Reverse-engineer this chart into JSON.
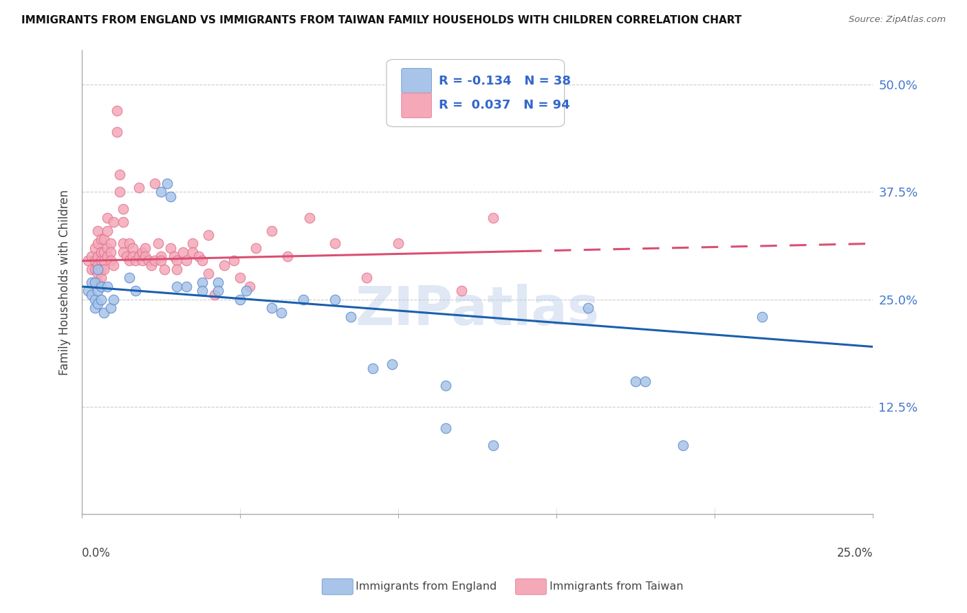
{
  "title": "IMMIGRANTS FROM ENGLAND VS IMMIGRANTS FROM TAIWAN FAMILY HOUSEHOLDS WITH CHILDREN CORRELATION CHART",
  "source": "Source: ZipAtlas.com",
  "ylabel": "Family Households with Children",
  "xlim": [
    0.0,
    0.25
  ],
  "ylim": [
    0.0,
    0.54
  ],
  "yticks": [
    0.0,
    0.125,
    0.25,
    0.375,
    0.5
  ],
  "ytick_labels": [
    "",
    "12.5%",
    "25.0%",
    "37.5%",
    "50.0%"
  ],
  "watermark": "ZIPatlas",
  "england_color": "#a8c4e8",
  "taiwan_color": "#f4a8b8",
  "england_edge_color": "#5588cc",
  "taiwan_edge_color": "#e07090",
  "england_line_color": "#1a5fad",
  "taiwan_line_color": "#d94f72",
  "england_trend_x": [
    0.0,
    0.25
  ],
  "england_trend_y": [
    0.265,
    0.195
  ],
  "taiwan_trend_x": [
    0.0,
    0.25
  ],
  "taiwan_trend_y": [
    0.295,
    0.315
  ],
  "england_scatter": [
    [
      0.002,
      0.26
    ],
    [
      0.003,
      0.27
    ],
    [
      0.003,
      0.255
    ],
    [
      0.004,
      0.27
    ],
    [
      0.004,
      0.25
    ],
    [
      0.004,
      0.24
    ],
    [
      0.005,
      0.285
    ],
    [
      0.005,
      0.26
    ],
    [
      0.005,
      0.245
    ],
    [
      0.006,
      0.265
    ],
    [
      0.006,
      0.25
    ],
    [
      0.007,
      0.235
    ],
    [
      0.008,
      0.265
    ],
    [
      0.009,
      0.24
    ],
    [
      0.01,
      0.25
    ],
    [
      0.015,
      0.275
    ],
    [
      0.017,
      0.26
    ],
    [
      0.025,
      0.375
    ],
    [
      0.027,
      0.385
    ],
    [
      0.028,
      0.37
    ],
    [
      0.03,
      0.265
    ],
    [
      0.033,
      0.265
    ],
    [
      0.038,
      0.27
    ],
    [
      0.038,
      0.26
    ],
    [
      0.043,
      0.27
    ],
    [
      0.043,
      0.26
    ],
    [
      0.05,
      0.25
    ],
    [
      0.052,
      0.26
    ],
    [
      0.06,
      0.24
    ],
    [
      0.063,
      0.235
    ],
    [
      0.07,
      0.25
    ],
    [
      0.08,
      0.25
    ],
    [
      0.085,
      0.23
    ],
    [
      0.092,
      0.17
    ],
    [
      0.098,
      0.175
    ],
    [
      0.115,
      0.15
    ],
    [
      0.115,
      0.1
    ],
    [
      0.13,
      0.08
    ],
    [
      0.16,
      0.24
    ],
    [
      0.175,
      0.155
    ],
    [
      0.178,
      0.155
    ],
    [
      0.19,
      0.08
    ],
    [
      0.215,
      0.23
    ]
  ],
  "taiwan_scatter": [
    [
      0.002,
      0.295
    ],
    [
      0.003,
      0.3
    ],
    [
      0.003,
      0.285
    ],
    [
      0.004,
      0.31
    ],
    [
      0.004,
      0.295
    ],
    [
      0.004,
      0.285
    ],
    [
      0.005,
      0.33
    ],
    [
      0.005,
      0.315
    ],
    [
      0.005,
      0.3
    ],
    [
      0.005,
      0.29
    ],
    [
      0.005,
      0.28
    ],
    [
      0.005,
      0.27
    ],
    [
      0.006,
      0.32
    ],
    [
      0.006,
      0.305
    ],
    [
      0.006,
      0.295
    ],
    [
      0.006,
      0.285
    ],
    [
      0.006,
      0.275
    ],
    [
      0.007,
      0.32
    ],
    [
      0.007,
      0.305
    ],
    [
      0.007,
      0.295
    ],
    [
      0.007,
      0.285
    ],
    [
      0.008,
      0.345
    ],
    [
      0.008,
      0.33
    ],
    [
      0.008,
      0.31
    ],
    [
      0.008,
      0.3
    ],
    [
      0.009,
      0.315
    ],
    [
      0.009,
      0.305
    ],
    [
      0.009,
      0.295
    ],
    [
      0.01,
      0.34
    ],
    [
      0.01,
      0.29
    ],
    [
      0.011,
      0.47
    ],
    [
      0.011,
      0.445
    ],
    [
      0.012,
      0.395
    ],
    [
      0.012,
      0.375
    ],
    [
      0.013,
      0.355
    ],
    [
      0.013,
      0.34
    ],
    [
      0.013,
      0.315
    ],
    [
      0.013,
      0.305
    ],
    [
      0.014,
      0.3
    ],
    [
      0.015,
      0.295
    ],
    [
      0.015,
      0.315
    ],
    [
      0.016,
      0.31
    ],
    [
      0.016,
      0.3
    ],
    [
      0.017,
      0.295
    ],
    [
      0.018,
      0.38
    ],
    [
      0.018,
      0.3
    ],
    [
      0.019,
      0.305
    ],
    [
      0.019,
      0.295
    ],
    [
      0.02,
      0.31
    ],
    [
      0.02,
      0.3
    ],
    [
      0.021,
      0.295
    ],
    [
      0.022,
      0.29
    ],
    [
      0.023,
      0.385
    ],
    [
      0.023,
      0.295
    ],
    [
      0.024,
      0.315
    ],
    [
      0.025,
      0.3
    ],
    [
      0.025,
      0.295
    ],
    [
      0.026,
      0.285
    ],
    [
      0.028,
      0.31
    ],
    [
      0.029,
      0.3
    ],
    [
      0.03,
      0.295
    ],
    [
      0.03,
      0.285
    ],
    [
      0.032,
      0.305
    ],
    [
      0.033,
      0.295
    ],
    [
      0.035,
      0.315
    ],
    [
      0.035,
      0.305
    ],
    [
      0.037,
      0.3
    ],
    [
      0.038,
      0.295
    ],
    [
      0.04,
      0.325
    ],
    [
      0.04,
      0.28
    ],
    [
      0.042,
      0.255
    ],
    [
      0.045,
      0.29
    ],
    [
      0.048,
      0.295
    ],
    [
      0.05,
      0.275
    ],
    [
      0.053,
      0.265
    ],
    [
      0.055,
      0.31
    ],
    [
      0.06,
      0.33
    ],
    [
      0.065,
      0.3
    ],
    [
      0.072,
      0.345
    ],
    [
      0.08,
      0.315
    ],
    [
      0.09,
      0.275
    ],
    [
      0.1,
      0.315
    ],
    [
      0.12,
      0.26
    ],
    [
      0.13,
      0.345
    ]
  ]
}
